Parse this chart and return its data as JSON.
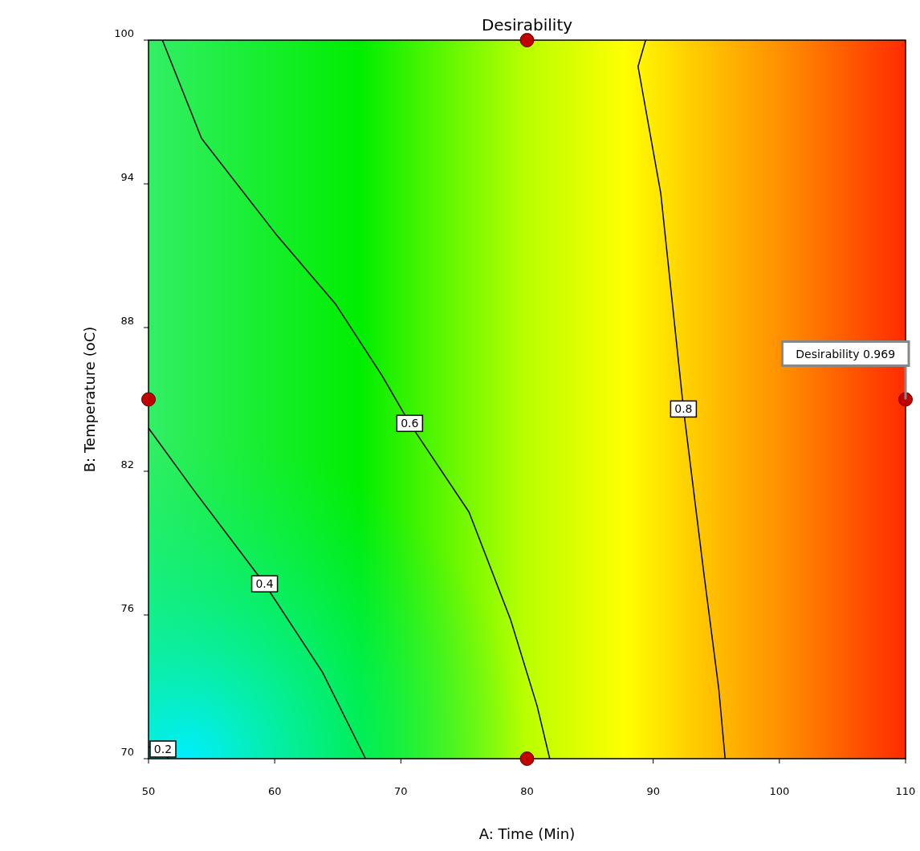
{
  "chart_data": {
    "type": "line",
    "title": "Desirability",
    "xlabel": "A: Time (Min)",
    "ylabel": "B: Temperature (oC)",
    "xlim": [
      50,
      110
    ],
    "ylim": [
      70,
      100
    ],
    "xticks": [
      50,
      60,
      70,
      80,
      90,
      100,
      110
    ],
    "yticks": [
      70,
      76,
      82,
      88,
      94,
      100
    ],
    "grid": false,
    "legend": false,
    "marker": "none",
    "line_style": "solid",
    "series": [
      {
        "name": "0.2",
        "color": "#000000",
        "x": [
          50,
          51.0,
          51.6
        ],
        "values": [
          70.5,
          70.3,
          70
        ]
      },
      {
        "name": "0.4",
        "color": "#000000",
        "x": [
          50,
          53.6,
          59.2,
          63.8,
          67.2
        ],
        "values": [
          83.8,
          81.2,
          77.3,
          73.6,
          70
        ]
      },
      {
        "name": "0.6",
        "color": "#000000",
        "x": [
          51.1,
          54.2,
          60.1,
          64.8,
          68.5,
          70.7,
          75.4,
          78.7,
          80.8,
          81.8
        ],
        "values": [
          100,
          95.9,
          91.9,
          89.0,
          86.0,
          84.0,
          80.3,
          75.8,
          72.2,
          70
        ]
      },
      {
        "name": "0.8",
        "color": "#000000",
        "x": [
          89.4,
          88.8,
          90.6,
          92.4,
          94.0,
          95.2,
          95.7
        ],
        "values": [
          100,
          98.9,
          93.6,
          84.6,
          77.8,
          72.9,
          70
        ]
      },
      {
        "type": "scatter",
        "marker": "circle",
        "color": "#c00000",
        "x": [
          80,
          50,
          80,
          110
        ],
        "values": [
          100,
          85,
          70,
          85
        ]
      }
    ],
    "annotations": [
      {
        "text": "Desirability 0.969",
        "x": 110,
        "y": 85
      }
    ]
  }
}
